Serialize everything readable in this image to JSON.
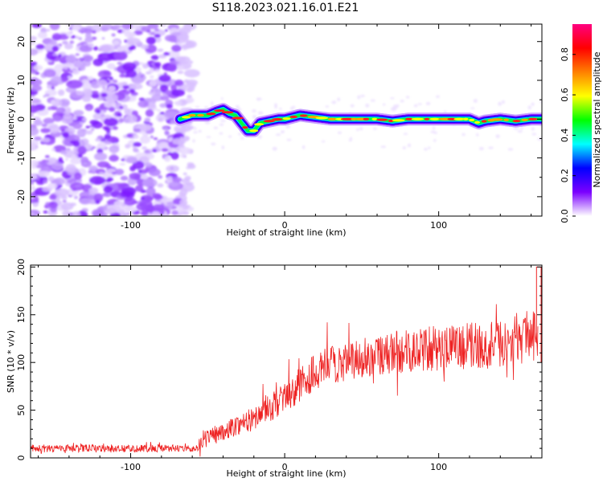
{
  "title": "S118.2023.021.16.01.E21",
  "chart_data": [
    {
      "type": "heatmap",
      "xlabel": "Height of straight line (km)",
      "ylabel": "Frequency (Hz)",
      "xlim": [
        -165,
        167
      ],
      "ylim": [
        -25,
        24.5
      ],
      "xticks": [
        -100,
        0,
        100
      ],
      "yticks": [
        -20,
        -10,
        0,
        10,
        20
      ],
      "colorbar": {
        "label": "Normalized spectral amplitude",
        "range": [
          0,
          0.95
        ],
        "ticks": [
          0.0,
          0.2,
          0.4,
          0.6,
          0.8
        ],
        "colors": [
          "#ffffff",
          "#7b00ff",
          "#0000ff",
          "#00ffff",
          "#00ff00",
          "#ffff00",
          "#ff8000",
          "#ff0000",
          "#ff0080"
        ]
      },
      "noise_region_x": [
        -165,
        -68
      ],
      "ridge": {
        "x": [
          -68,
          -60,
          -50,
          -44,
          -40,
          -36,
          -32,
          -28,
          -24,
          -20,
          -16,
          -10,
          -4,
          0,
          5,
          10,
          20,
          30,
          40,
          50,
          60,
          70,
          80,
          90,
          100,
          110,
          115,
          120,
          126,
          130,
          140,
          150,
          160,
          167
        ],
        "frequency": [
          0,
          1,
          1,
          2,
          2.5,
          1.5,
          1,
          -1,
          -3,
          -3,
          -1,
          -0.5,
          0,
          0,
          0.5,
          1,
          0.5,
          0,
          0,
          0,
          0,
          -0.5,
          0,
          0,
          0,
          0,
          0,
          0,
          -1,
          -0.5,
          0,
          -0.5,
          0,
          0
        ]
      }
    },
    {
      "type": "line",
      "xlabel": "Height of straight line (km)",
      "ylabel": "SNR (10 * v/v)",
      "xlim": [
        -165,
        167
      ],
      "ylim": [
        0,
        202
      ],
      "xticks": [
        -100,
        0,
        100
      ],
      "yticks": [
        0,
        50,
        100,
        150,
        200
      ],
      "color": "#ee2222",
      "trend": {
        "x": [
          -165,
          -100,
          -56,
          -55,
          -40,
          -20,
          0,
          15,
          30,
          60,
          100,
          130,
          160,
          165
        ],
        "y": [
          10,
          10,
          10,
          20,
          28,
          42,
          62,
          85,
          98,
          108,
          115,
          118,
          125,
          130
        ]
      },
      "spread": {
        "x": [
          -165,
          -56,
          -55,
          -20,
          0,
          20,
          60,
          120,
          165
        ],
        "y": [
          4,
          4,
          8,
          12,
          16,
          20,
          22,
          25,
          25
        ]
      },
      "end_spike": {
        "x": 165,
        "y": 200
      }
    }
  ]
}
